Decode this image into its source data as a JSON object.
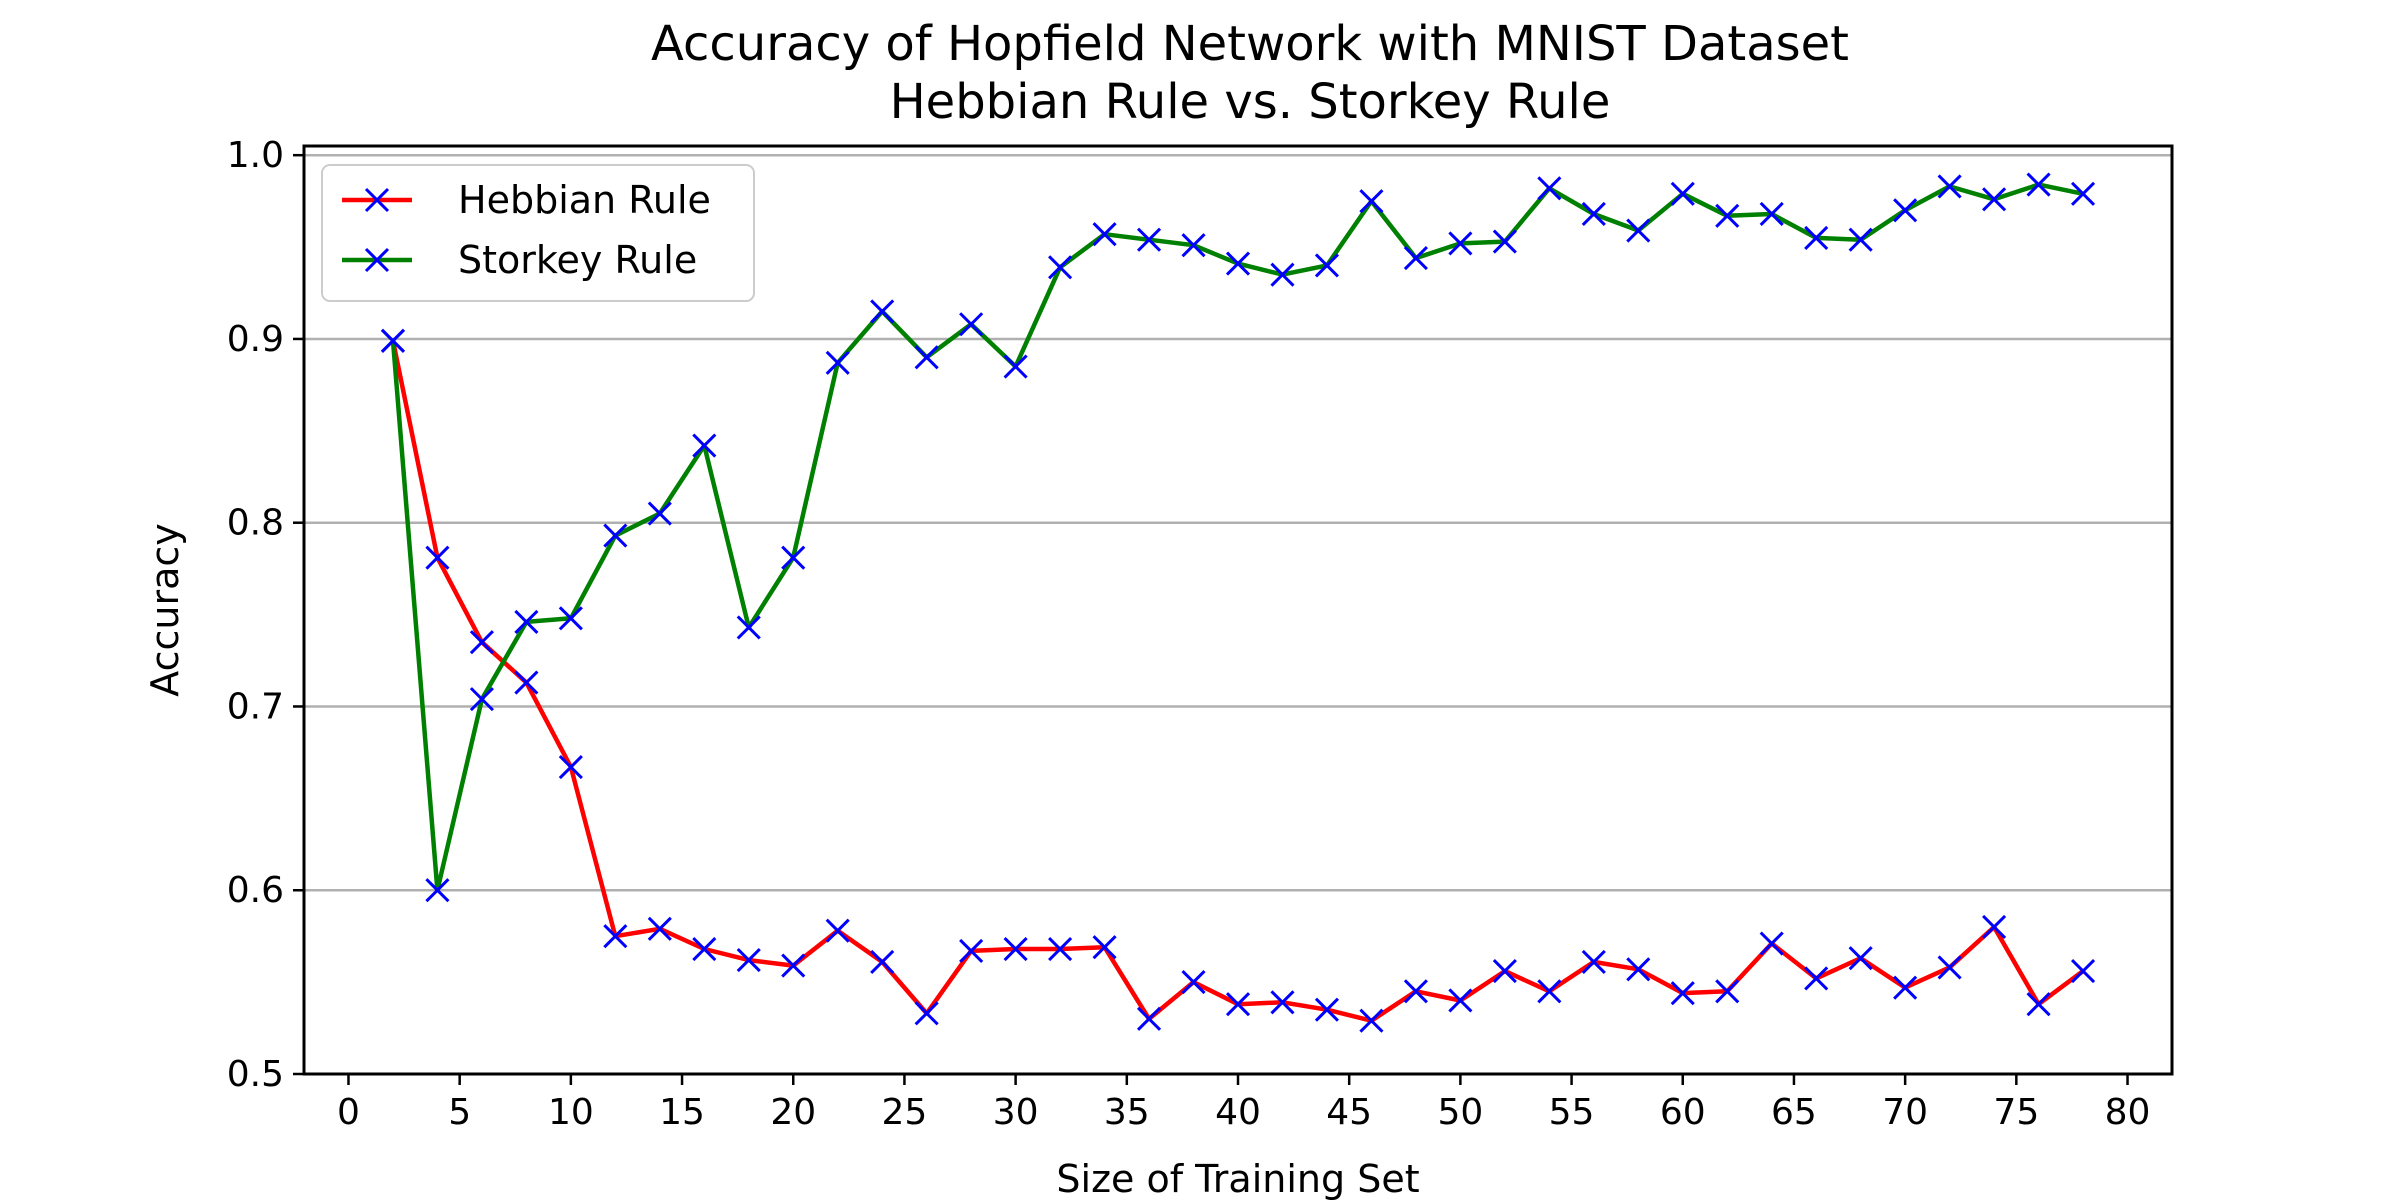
{
  "chart_data": {
    "type": "line",
    "title": "Accuracy of Hopfield Network with MNIST Dataset",
    "subtitle": "Hebbian Rule vs. Storkey Rule",
    "xlabel": "Size of Training Set",
    "ylabel": "Accuracy",
    "xlim": [
      -2,
      82
    ],
    "ylim": [
      0.5,
      1.005
    ],
    "xticks": [
      0,
      5,
      10,
      15,
      20,
      25,
      30,
      35,
      40,
      45,
      50,
      55,
      60,
      65,
      70,
      75,
      80
    ],
    "xtick_labels": [
      "0",
      "5",
      "10",
      "15",
      "20",
      "25",
      "30",
      "35",
      "40",
      "45",
      "50",
      "55",
      "60",
      "65",
      "70",
      "75",
      "80"
    ],
    "yticks": [
      0.5,
      0.6,
      0.7,
      0.8,
      0.9,
      1.0
    ],
    "ytick_labels": [
      "0.5",
      "0.6",
      "0.7",
      "0.8",
      "0.9",
      "1.0"
    ],
    "grid": "horizontal",
    "legend_position": "upper-left",
    "marker_color": "#0000ff",
    "x": [
      2,
      4,
      6,
      8,
      10,
      12,
      14,
      16,
      18,
      20,
      22,
      24,
      26,
      28,
      30,
      32,
      34,
      36,
      38,
      40,
      42,
      44,
      46,
      48,
      50,
      52,
      54,
      56,
      58,
      60,
      62,
      64,
      66,
      68,
      70,
      72,
      74,
      76,
      78
    ],
    "series": [
      {
        "name": "Hebbian Rule",
        "color": "#ff0000",
        "values": [
          0.899,
          0.781,
          0.735,
          0.713,
          0.667,
          0.575,
          0.579,
          0.568,
          0.562,
          0.559,
          0.578,
          0.561,
          0.533,
          0.567,
          0.568,
          0.568,
          0.569,
          0.53,
          0.55,
          0.538,
          0.539,
          0.535,
          0.529,
          0.545,
          0.54,
          0.556,
          0.545,
          0.561,
          0.557,
          0.544,
          0.545,
          0.571,
          0.552,
          0.563,
          0.547,
          0.558,
          0.58,
          0.538,
          0.556
        ]
      },
      {
        "name": "Storkey Rule",
        "color": "#008000",
        "values": [
          0.899,
          0.6,
          0.704,
          0.746,
          0.748,
          0.793,
          0.805,
          0.842,
          0.743,
          0.781,
          0.887,
          0.915,
          0.89,
          0.908,
          0.885,
          0.939,
          0.957,
          0.954,
          0.951,
          0.941,
          0.935,
          0.94,
          0.975,
          0.944,
          0.952,
          0.953,
          0.982,
          0.968,
          0.959,
          0.979,
          0.967,
          0.968,
          0.955,
          0.954,
          0.97,
          0.983,
          0.976,
          0.984,
          0.979
        ]
      }
    ]
  }
}
